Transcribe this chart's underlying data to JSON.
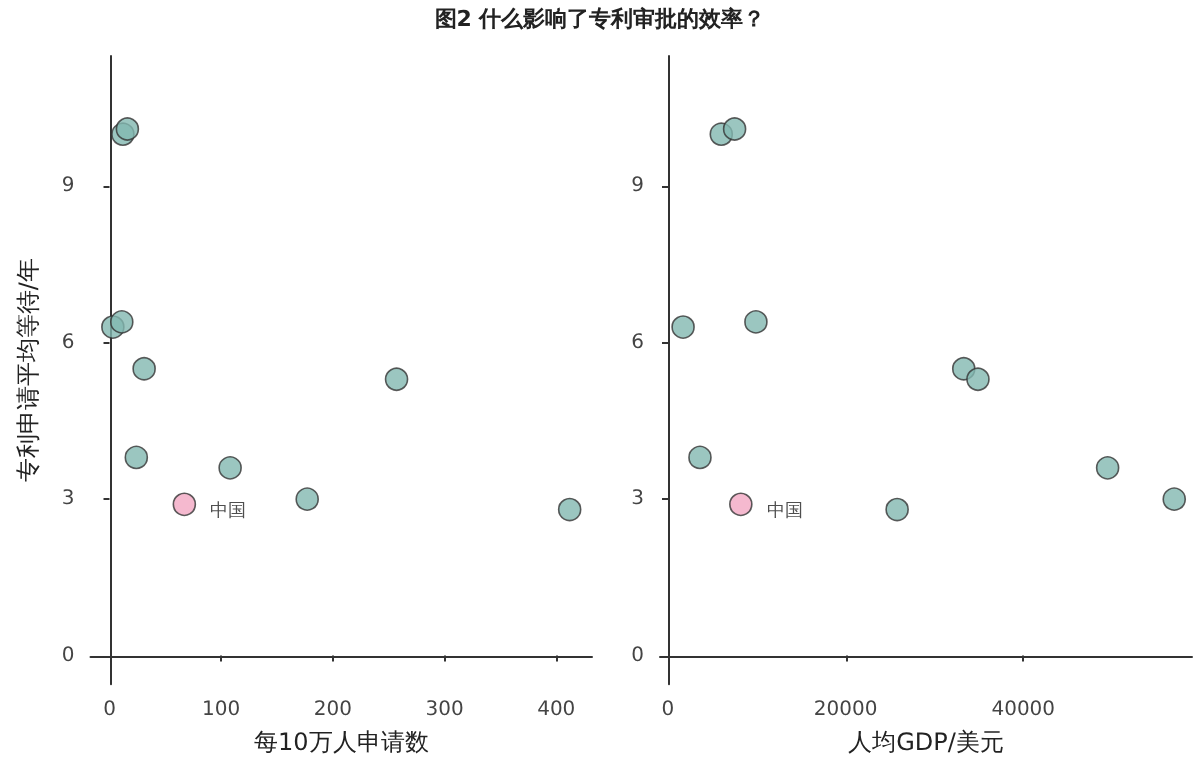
{
  "chart_data": [
    {
      "type": "scatter",
      "title": "图2 什么影响了专利审批的效率？",
      "xlabel": "每10万人申请数",
      "ylabel": "专利申请平均等待/年",
      "xlim": [
        -17,
        432
      ],
      "xticks": [
        0,
        100,
        200,
        300,
        400
      ],
      "ylim": [
        -0.55,
        11.5
      ],
      "yticks": [
        0,
        3,
        6,
        9
      ],
      "grid": false,
      "marker": "circle",
      "series": [
        {
          "color": "#82b8b0",
          "x": [
            12,
            16,
            3,
            11,
            31,
            24,
            108,
            177,
            257,
            412
          ],
          "values": [
            10.0,
            10.1,
            6.3,
            6.4,
            5.5,
            3.8,
            3.6,
            3.0,
            5.3,
            2.8
          ]
        },
        {
          "color": "#f2a7c3",
          "x": [
            67
          ],
          "values": [
            2.9
          ]
        }
      ],
      "annotations": [
        {
          "text": "中国",
          "x": 67,
          "y": 2.9
        }
      ]
    },
    {
      "type": "scatter",
      "xlabel": "人均GDP/美元",
      "xlim": [
        -900,
        59000
      ],
      "xticks": [
        0,
        20000,
        40000
      ],
      "ylim": [
        -0.55,
        11.5
      ],
      "yticks": [
        0,
        3,
        6,
        9
      ],
      "grid": false,
      "marker": "circle",
      "series": [
        {
          "color": "#82b8b0",
          "x": [
            6000,
            7500,
            1700,
            9900,
            33300,
            34900,
            3600,
            25800,
            49500,
            57000
          ],
          "values": [
            10.0,
            10.1,
            6.3,
            6.4,
            5.5,
            5.3,
            3.8,
            2.8,
            3.6,
            3.0
          ]
        },
        {
          "color": "#f2a7c3",
          "x": [
            8200
          ],
          "values": [
            2.9
          ]
        }
      ],
      "annotations": [
        {
          "text": "中国",
          "x": 8200,
          "y": 2.9
        }
      ]
    }
  ]
}
